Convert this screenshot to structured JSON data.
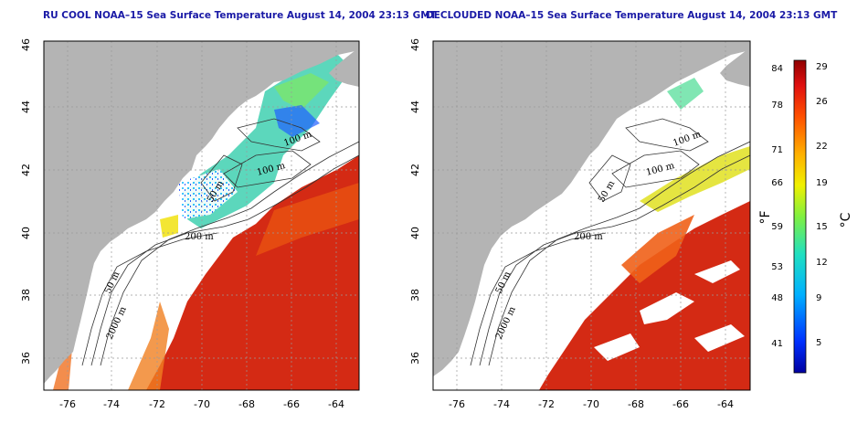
{
  "titles": {
    "left": "RU COOL NOAA–15 Sea Surface Temperature August 14, 2004 23:13 GMT",
    "right": "DECLOUDED NOAA–15 Sea Surface Temperature August 14, 2004 23:13 GMT"
  },
  "axes": {
    "x_ticks": [
      "-76",
      "-74",
      "-72",
      "-70",
      "-68",
      "-66",
      "-64"
    ],
    "y_ticks": [
      "36",
      "38",
      "40",
      "42",
      "44",
      "46"
    ]
  },
  "contour_labels": {
    "left": [
      "100 m",
      "100 m",
      "50 m",
      "200 m",
      "50 m",
      "2000 m"
    ],
    "right": [
      "100 m",
      "100 m",
      "50 m",
      "200 m",
      "50 m",
      "2000 m"
    ]
  },
  "colorbar": {
    "fahrenheit_ticks": [
      "84",
      "78",
      "71",
      "66",
      "59",
      "53",
      "48",
      "41"
    ],
    "celsius_ticks": [
      "29",
      "26",
      "22",
      "19",
      "15",
      "12",
      "9",
      "5"
    ],
    "fahrenheit_unit": "°F",
    "celsius_unit": "°C"
  },
  "colors": {
    "land": "#b4b4b4",
    "cloud": "#ffffff",
    "warm": "#d42a14",
    "title": "#1a1aa6"
  }
}
